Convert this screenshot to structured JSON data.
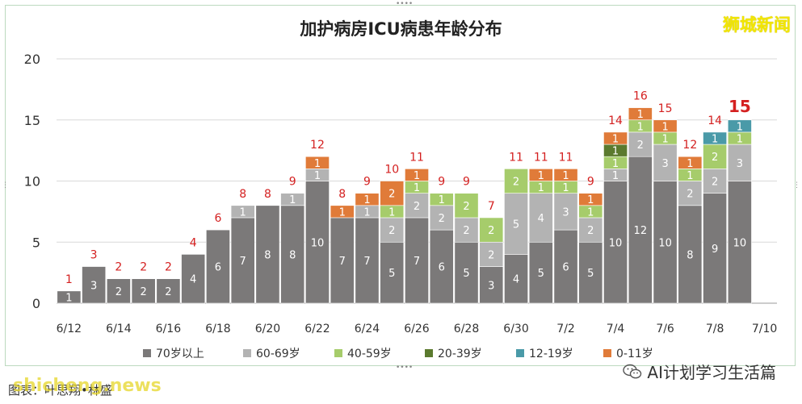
{
  "title": "加护病房ICU病患年龄分布",
  "watermark": "狮城新闻",
  "watermark_bottom": "shicheng.news",
  "caption": "图表：叶思翔•林盛",
  "footer_brand": "AI计划学习生活篇",
  "colors": {
    "70岁以上": "#7b7979",
    "60-69岁": "#b3b3b3",
    "40-59岁": "#a6cc6b",
    "20-39岁": "#5b7a2e",
    "12-19岁": "#4a9aa8",
    "0-11岁": "#e07b39",
    "total_label": "#d42020"
  },
  "chart_data": {
    "type": "bar",
    "stacked": true,
    "title": "加护病房ICU病患年龄分布",
    "ylim": [
      0,
      20
    ],
    "yticks": [
      0,
      5,
      10,
      15,
      20
    ],
    "grid": true,
    "legend_position": "bottom",
    "categories": [
      "6/12",
      "6/13",
      "6/14",
      "6/15",
      "6/16",
      "6/17",
      "6/18",
      "6/19",
      "6/20",
      "6/21",
      "6/22",
      "6/23",
      "6/24",
      "6/25",
      "6/26",
      "6/27",
      "6/28",
      "6/29",
      "6/30",
      "7/1",
      "7/2",
      "7/3",
      "7/4",
      "7/5",
      "7/6",
      "7/7",
      "7/8",
      "7/9",
      "7/10"
    ],
    "xtick_labels": [
      "6/12",
      "6/14",
      "6/16",
      "6/18",
      "6/20",
      "6/22",
      "6/24",
      "6/26",
      "6/28",
      "6/30",
      "7/2",
      "7/4",
      "7/6",
      "7/8",
      "7/10"
    ],
    "series": [
      {
        "name": "70岁以上",
        "values": [
          1,
          3,
          2,
          2,
          2,
          4,
          6,
          7,
          8,
          8,
          10,
          7,
          7,
          5,
          7,
          6,
          5,
          3,
          4,
          5,
          6,
          5,
          10,
          12,
          10,
          8,
          9,
          10,
          0
        ]
      },
      {
        "name": "60-69岁",
        "values": [
          0,
          0,
          0,
          0,
          0,
          0,
          0,
          1,
          0,
          1,
          1,
          0,
          1,
          2,
          2,
          2,
          2,
          2,
          5,
          4,
          3,
          2,
          1,
          2,
          3,
          2,
          2,
          3,
          0
        ]
      },
      {
        "name": "40-59岁",
        "values": [
          0,
          0,
          0,
          0,
          0,
          0,
          0,
          0,
          0,
          0,
          0,
          0,
          0,
          1,
          1,
          1,
          2,
          2,
          2,
          1,
          1,
          1,
          1,
          1,
          1,
          1,
          2,
          1,
          0
        ]
      },
      {
        "name": "20-39岁",
        "values": [
          0,
          0,
          0,
          0,
          0,
          0,
          0,
          0,
          0,
          0,
          0,
          0,
          0,
          0,
          0,
          0,
          0,
          0,
          0,
          0,
          0,
          0,
          1,
          0,
          0,
          0,
          0,
          0,
          0
        ]
      },
      {
        "name": "12-19岁",
        "values": [
          0,
          0,
          0,
          0,
          0,
          0,
          0,
          0,
          0,
          0,
          0,
          0,
          0,
          0,
          0,
          0,
          0,
          0,
          0,
          0,
          0,
          0,
          0,
          0,
          0,
          0,
          1,
          1,
          0
        ]
      },
      {
        "name": "0-11岁",
        "values": [
          0,
          0,
          0,
          0,
          0,
          0,
          0,
          0,
          0,
          0,
          1,
          1,
          1,
          2,
          1,
          0,
          0,
          0,
          0,
          1,
          1,
          1,
          1,
          1,
          1,
          1,
          0,
          0,
          0
        ]
      }
    ],
    "totals": [
      1,
      3,
      2,
      2,
      2,
      4,
      6,
      8,
      8,
      9,
      12,
      8,
      9,
      10,
      11,
      9,
      9,
      7,
      11,
      11,
      11,
      9,
      14,
      16,
      15,
      12,
      14,
      15,
      null
    ],
    "legend": [
      "70岁以上",
      "60-69岁",
      "40-59岁",
      "20-39岁",
      "12-19岁",
      "0-11岁"
    ]
  }
}
